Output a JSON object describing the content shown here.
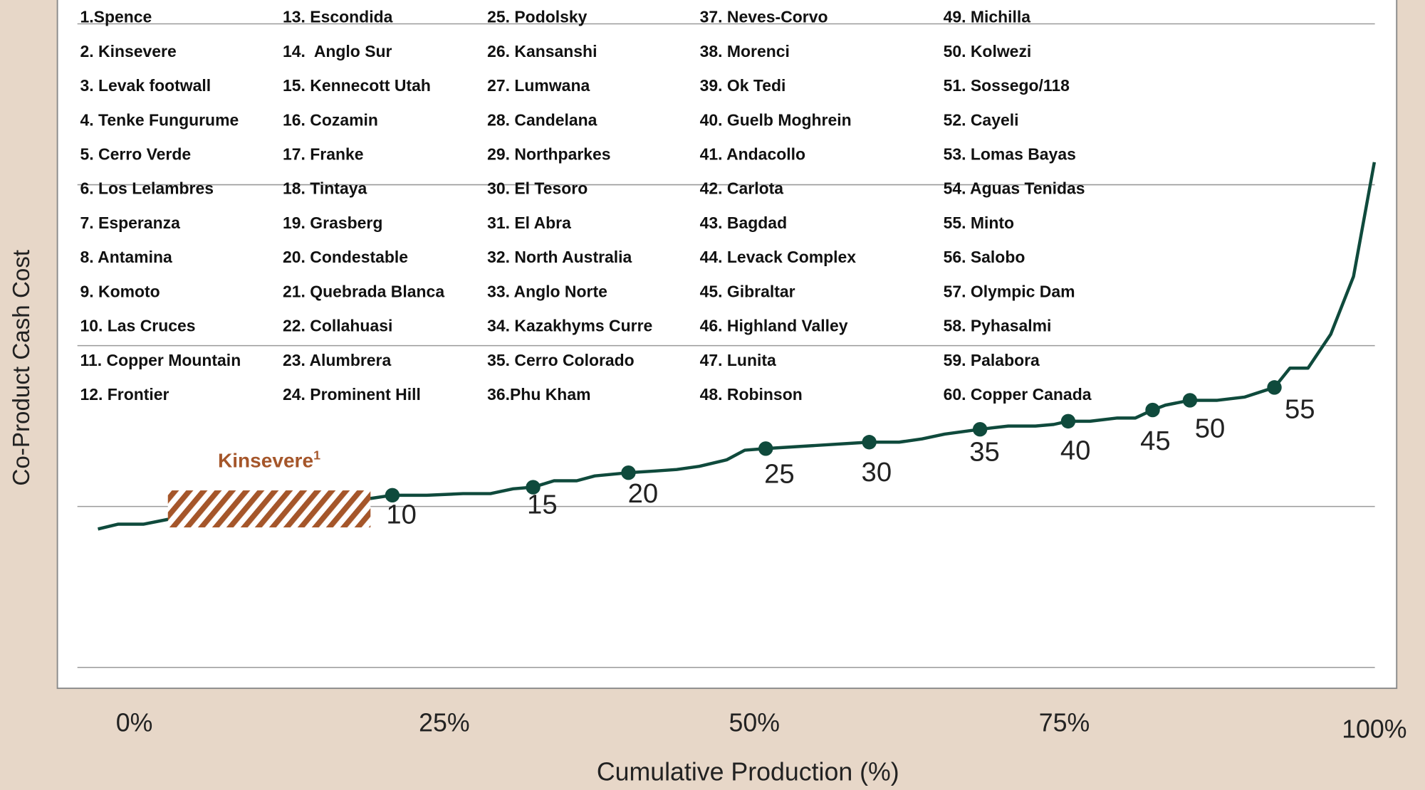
{
  "chart_data": {
    "type": "line",
    "x_label": "Cumulative Production (%)",
    "y_label": "Co-Product Cash Cost",
    "xlim": [
      -6.2,
      101.8
    ],
    "xticks": [
      {
        "value": 0,
        "label": "0%"
      },
      {
        "value": 25,
        "label": "25%"
      },
      {
        "value": 50,
        "label": "50%"
      },
      {
        "value": 75,
        "label": "75%"
      },
      {
        "value": 100,
        "label": "100%"
      }
    ],
    "ylim": [
      -0.13,
      4.12
    ],
    "yticks": [
      0,
      1,
      2,
      3,
      4
    ],
    "grid": true,
    "series": [
      {
        "color": "#0f4a3c",
        "x": [
          -2.93,
          -1.32,
          0.73,
          2.71,
          19.05,
          20.81,
          23.59,
          26.52,
          28.72,
          30.55,
          32.16,
          33.85,
          35.68,
          37.14,
          39.85,
          41.9,
          43.74,
          45.57,
          47.77,
          49.23,
          50.92,
          59.27,
          61.68,
          63.52,
          65.35,
          68.2,
          70.48,
          72.67,
          74.14,
          75.31,
          77.07,
          79.27,
          80.73,
          82.12,
          83.15,
          85.13,
          87.33,
          89.52,
          91.94,
          93.19,
          94.65,
          96.48,
          98.32,
          100
        ],
        "values": [
          0.86,
          0.89,
          0.89,
          0.92,
          1.05,
          1.07,
          1.07,
          1.08,
          1.08,
          1.11,
          1.12,
          1.16,
          1.16,
          1.19,
          1.21,
          1.22,
          1.23,
          1.25,
          1.29,
          1.35,
          1.36,
          1.4,
          1.4,
          1.42,
          1.45,
          1.48,
          1.5,
          1.5,
          1.51,
          1.53,
          1.53,
          1.55,
          1.55,
          1.6,
          1.63,
          1.66,
          1.66,
          1.68,
          1.74,
          1.86,
          1.86,
          2.07,
          2.43,
          3.14
        ]
      }
    ],
    "points": {
      "labels": [
        10,
        15,
        20,
        25,
        30,
        35,
        40,
        45,
        50,
        55
      ],
      "x": [
        20.81,
        32.16,
        39.85,
        50.92,
        59.27,
        68.2,
        75.31,
        82.12,
        85.13,
        91.94
      ],
      "y": [
        1.07,
        1.12,
        1.21,
        1.36,
        1.4,
        1.48,
        1.53,
        1.6,
        1.66,
        1.74
      ],
      "color": "#0f4a3c"
    },
    "annotation": {
      "text": "Kinsevere",
      "sup": "1",
      "color": "#a5562a",
      "x": [
        2.71,
        19.05
      ],
      "y": [
        0.87,
        1.1
      ]
    },
    "highlight": 1,
    "mines": [
      "1.Spence",
      "2. Kinsevere",
      "3. Levak footwall",
      "4. Tenke Fungurume",
      "5. Cerro Verde",
      "6. Los Lelambres",
      "7. Esperanza",
      "8. Antamina",
      "9. Komoto",
      "10. Las Cruces",
      "11. Copper Mountain",
      "12. Frontier",
      "13. Escondida",
      "14.  Anglo Sur",
      "15. Kennecott Utah",
      "16. Cozamin",
      "17. Franke",
      "18. Tintaya",
      "19. Grasberg",
      "20. Condestable",
      "21. Quebrada Blanca",
      "22. Collahuasi",
      "23. Alumbrera",
      "24. Prominent Hill",
      "25. Podolsky",
      "26. Kansanshi",
      "27. Lumwana",
      "28. Candelana",
      "29. Northparkes",
      "30. El Tesoro",
      "31. El Abra",
      "32. North Australia",
      "33. Anglo Norte",
      "34. Kazakhyms Curre",
      "35. Cerro Colorado",
      "36.Phu Kham",
      "37. Neves-Corvo",
      "38. Morenci",
      "39. Ok Tedi",
      "40. Guelb Moghrein",
      "41. Andacollo",
      "42. Carlota",
      "43. Bagdad",
      "44. Levack Complex",
      "45. Gibraltar",
      "46. Highland Valley",
      "47. Lunita",
      "48. Robinson",
      "49. Michilla",
      "50. Kolwezi",
      "51. Sossego/118",
      "52. Cayeli",
      "53. Lomas Bayas",
      "54. Aguas Tenidas",
      "55. Minto",
      "56. Salobo",
      "57. Olympic Dam",
      "58. Pyhasalmi",
      "59. Palabora",
      "60. Copper Canada"
    ]
  }
}
